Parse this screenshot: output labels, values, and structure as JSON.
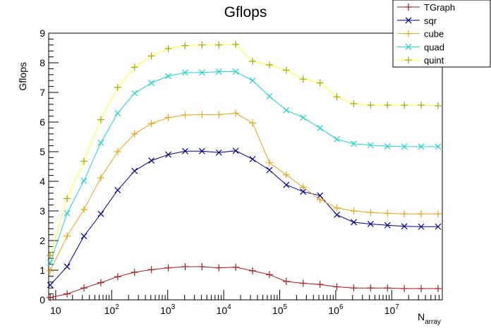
{
  "chart_data": {
    "type": "line",
    "title": "Gflops",
    "ylabel": "Gflops",
    "xlabel": "N",
    "xlabel_sub": "array",
    "xscale": "log",
    "xlim": [
      7.5,
      80000000
    ],
    "ylim": [
      0,
      9
    ],
    "x_ticks": [
      {
        "value": 10,
        "base": "10",
        "exp": ""
      },
      {
        "value": 100,
        "base": "10",
        "exp": "2"
      },
      {
        "value": 1000,
        "base": "10",
        "exp": "3"
      },
      {
        "value": 10000,
        "base": "10",
        "exp": "4"
      },
      {
        "value": 100000,
        "base": "10",
        "exp": "5"
      },
      {
        "value": 1000000,
        "base": "10",
        "exp": "6"
      },
      {
        "value": 10000000,
        "base": "10",
        "exp": "7"
      }
    ],
    "y_ticks": [
      "0",
      "1",
      "2",
      "3",
      "4",
      "5",
      "6",
      "7",
      "8",
      "9"
    ],
    "grid": false,
    "legend_position": "top-right",
    "x": [
      8,
      16,
      32,
      64,
      128,
      256,
      512,
      1024,
      2048,
      4096,
      8192,
      16384,
      32768,
      65536,
      131072,
      262144,
      524288,
      1048576,
      2097152,
      4194304,
      8388608,
      16777216,
      33554432,
      67108864
    ],
    "series": [
      {
        "name": "TGraph",
        "color": "#a81b1b",
        "marker": "plus",
        "values": [
          0.08,
          0.2,
          0.4,
          0.58,
          0.78,
          0.93,
          1.02,
          1.08,
          1.12,
          1.12,
          1.08,
          1.1,
          0.98,
          0.85,
          0.62,
          0.56,
          0.52,
          0.44,
          0.4,
          0.4,
          0.4,
          0.38,
          0.38,
          0.38
        ]
      },
      {
        "name": "sqr",
        "color": "#00008b",
        "marker": "cross",
        "values": [
          0.5,
          1.12,
          2.15,
          2.9,
          3.7,
          4.35,
          4.7,
          4.9,
          5.02,
          5.02,
          4.97,
          5.03,
          4.75,
          4.38,
          3.88,
          3.65,
          3.52,
          2.87,
          2.62,
          2.56,
          2.52,
          2.48,
          2.47,
          2.47
        ]
      },
      {
        "name": "cube",
        "color": "#e8a317",
        "marker": "plus",
        "values": [
          0.98,
          2.15,
          3.05,
          4.12,
          5.0,
          5.6,
          5.95,
          6.15,
          6.24,
          6.25,
          6.25,
          6.3,
          5.97,
          4.63,
          4.22,
          3.8,
          3.38,
          3.1,
          3.0,
          2.95,
          2.92,
          2.9,
          2.9,
          2.9
        ]
      },
      {
        "name": "quad",
        "color": "#1fd1d1",
        "marker": "cross",
        "values": [
          1.25,
          2.92,
          4.02,
          5.3,
          6.3,
          6.97,
          7.32,
          7.55,
          7.67,
          7.67,
          7.7,
          7.7,
          7.4,
          6.87,
          6.4,
          6.15,
          5.8,
          5.42,
          5.27,
          5.22,
          5.18,
          5.17,
          5.17,
          5.17
        ]
      },
      {
        "name": "quint",
        "color": "#ffff33",
        "marker_color": "#a6a600",
        "marker": "plus",
        "values": [
          1.5,
          3.42,
          4.68,
          6.08,
          7.17,
          7.85,
          8.23,
          8.48,
          8.58,
          8.6,
          8.6,
          8.62,
          8.05,
          7.93,
          7.75,
          7.45,
          7.32,
          6.85,
          6.62,
          6.57,
          6.57,
          6.57,
          6.57,
          6.55
        ]
      }
    ]
  }
}
